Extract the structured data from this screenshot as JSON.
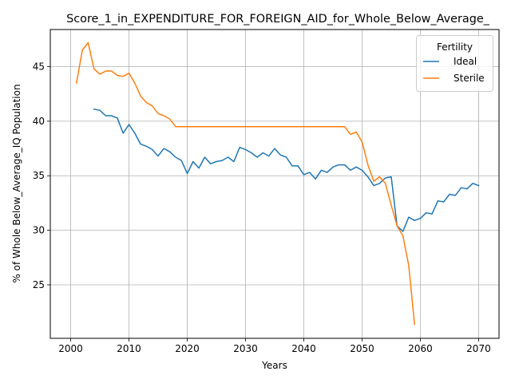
{
  "chart_data": {
    "type": "line",
    "title": "Score_1_in_EXPENDITURE_FOR_FOREIGN_AID_for_Whole_Below_Average_",
    "xlabel": "Years",
    "ylabel": "% of Whole Below_Average_IQ Population",
    "xlim": [
      1996.5,
      2073.5
    ],
    "ylim": [
      20.1,
      48.4
    ],
    "xticks": [
      2000,
      2010,
      2020,
      2030,
      2040,
      2050,
      2060,
      2070
    ],
    "yticks": [
      25,
      30,
      35,
      40,
      45
    ],
    "grid": true,
    "legend": {
      "title": "Fertility",
      "position": "top-right"
    },
    "series": [
      {
        "name": "Ideal",
        "color": "#1f77b4",
        "x": [
          2004,
          2005,
          2006,
          2007,
          2008,
          2009,
          2010,
          2011,
          2012,
          2013,
          2014,
          2015,
          2016,
          2017,
          2018,
          2019,
          2020,
          2021,
          2022,
          2023,
          2024,
          2025,
          2026,
          2027,
          2028,
          2029,
          2030,
          2031,
          2032,
          2033,
          2034,
          2035,
          2036,
          2037,
          2038,
          2039,
          2040,
          2041,
          2042,
          2043,
          2044,
          2045,
          2046,
          2047,
          2048,
          2049,
          2050,
          2051,
          2052,
          2053,
          2054,
          2055,
          2056,
          2057,
          2058,
          2059,
          2060,
          2061,
          2062,
          2063,
          2064,
          2065,
          2066,
          2067,
          2068,
          2069,
          2070
        ],
        "values": [
          41.1,
          41.0,
          40.5,
          40.5,
          40.3,
          38.9,
          39.7,
          38.9,
          37.9,
          37.7,
          37.4,
          36.8,
          37.5,
          37.2,
          36.7,
          36.4,
          35.2,
          36.3,
          35.7,
          36.7,
          36.1,
          36.3,
          36.4,
          36.7,
          36.3,
          37.6,
          37.4,
          37.1,
          36.7,
          37.1,
          36.8,
          37.5,
          36.9,
          36.7,
          35.9,
          35.9,
          35.1,
          35.3,
          34.7,
          35.5,
          35.3,
          35.8,
          36.0,
          36.0,
          35.5,
          35.8,
          35.5,
          34.9,
          34.1,
          34.3,
          34.8,
          34.9,
          30.4,
          29.9,
          31.2,
          30.9,
          31.1,
          31.6,
          31.5,
          32.7,
          32.6,
          33.3,
          33.2,
          33.9,
          33.8,
          34.3,
          34.1
        ]
      },
      {
        "name": "Sterile",
        "color": "#ff7f0e",
        "x": [
          2001,
          2002,
          2003,
          2004,
          2005,
          2006,
          2007,
          2008,
          2009,
          2010,
          2011,
          2012,
          2013,
          2014,
          2015,
          2016,
          2017,
          2018,
          2019,
          2020,
          2021,
          2022,
          2023,
          2024,
          2025,
          2026,
          2027,
          2028,
          2029,
          2030,
          2031,
          2032,
          2033,
          2034,
          2035,
          2036,
          2037,
          2038,
          2039,
          2040,
          2041,
          2042,
          2043,
          2044,
          2045,
          2046,
          2047,
          2048,
          2049,
          2050,
          2051,
          2052,
          2053,
          2054,
          2055,
          2056,
          2057,
          2058,
          2059
        ],
        "values": [
          43.5,
          46.5,
          47.2,
          44.8,
          44.3,
          44.6,
          44.6,
          44.2,
          44.1,
          44.4,
          43.5,
          42.3,
          41.7,
          41.4,
          40.7,
          40.5,
          40.2,
          39.5,
          39.5,
          39.5,
          39.5,
          39.5,
          39.5,
          39.5,
          39.5,
          39.5,
          39.5,
          39.5,
          39.5,
          39.5,
          39.5,
          39.5,
          39.5,
          39.5,
          39.5,
          39.5,
          39.5,
          39.5,
          39.5,
          39.5,
          39.5,
          39.5,
          39.5,
          39.5,
          39.5,
          39.5,
          39.5,
          38.8,
          39.0,
          38.1,
          36.0,
          34.5,
          34.9,
          34.3,
          32.3,
          30.4,
          29.5,
          26.8,
          21.4
        ]
      }
    ]
  }
}
